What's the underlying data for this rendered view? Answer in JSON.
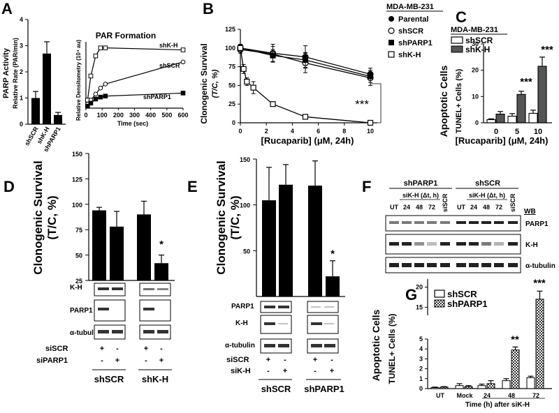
{
  "panels": {
    "A": "A",
    "B": "B",
    "C": "C",
    "D": "D",
    "E": "E",
    "F": "F",
    "G": "G"
  },
  "panelA": {
    "bar": {
      "ylabel1": "PARP Activity",
      "ylabel2": "Relative Rate (PAR/min)",
      "yticks": [
        "0",
        "1",
        "2",
        "3",
        "4"
      ],
      "categories": [
        "shSCR",
        "shK-H",
        "shPARP1"
      ]
    },
    "curve": {
      "title": "PAR Formation",
      "ylabel": "Relative Densitometry (10⁴ au)",
      "xlabel": "Time (sec)",
      "xticks": [
        "0",
        "100",
        "200",
        "300",
        "400",
        "500",
        "600"
      ],
      "labels": [
        "shK-H",
        "shSCR",
        "shPARP1"
      ]
    }
  },
  "panelB": {
    "ylabel1": "Clonogenic Survival",
    "ylabel2": "(T/C, %)",
    "xlabel": "[Rucaparib] (μM, 24h)",
    "yticks": [
      "0",
      "25",
      "50",
      "75",
      "100",
      "125"
    ],
    "xticks": [
      "0",
      "2",
      "4",
      "6",
      "8",
      "10"
    ],
    "legend_title": "MDA-MB-231",
    "legend": [
      "Parental",
      "shSCR",
      "shPARP1",
      "shK-H"
    ],
    "sig": "***"
  },
  "panelC": {
    "ylabel1": "Apoptotic Cells",
    "ylabel2": "TUNEL+ Cells (%)",
    "xlabel": "[Rucaparib] (μM, 24h)",
    "yticks": [
      "0",
      "10",
      "20",
      "30"
    ],
    "xticks": [
      "0",
      "5",
      "10"
    ],
    "legend_title": "MDA-MB-231",
    "legend": [
      "shSCR",
      "shK-H"
    ],
    "sig": [
      "***",
      "***"
    ]
  },
  "panelD": {
    "ylabel1": "Clonogenic Survival",
    "ylabel2": "(T/C, %)",
    "yticks": [
      "25",
      "50",
      "75",
      "100",
      "125",
      "150"
    ],
    "sig": "*",
    "blots": [
      "K-H",
      "PARP1",
      "α-tubulin"
    ],
    "rows": [
      "siSCR",
      "siPARP1"
    ],
    "signs": {
      "siSCR": [
        "+",
        "-",
        "+",
        "-"
      ],
      "siPARP1": [
        "-",
        "+",
        "-",
        "+"
      ]
    },
    "groups": [
      "shSCR",
      "shK-H"
    ]
  },
  "panelE": {
    "ylabel1": "Clonogenic Survival",
    "ylabel2": "(T/C, %)",
    "yticks": [
      "50",
      "100",
      "150"
    ],
    "sig": "*",
    "blots": [
      "PARP1",
      "K-H",
      "α-tubulin"
    ],
    "rows": [
      "siSCR",
      "siK-H"
    ],
    "signs": {
      "siSCR": [
        "+",
        "-",
        "+",
        "-"
      ],
      "siK-H": [
        "-",
        "+",
        "-",
        "+"
      ]
    },
    "groups": [
      "shSCR",
      "shPARP1"
    ]
  },
  "panelF": {
    "groups": [
      "shPARP1",
      "shSCR"
    ],
    "sub": "siK-H (Δt, h)",
    "lanes": [
      "UT",
      "24",
      "48",
      "72",
      "siSCR",
      "UT",
      "24",
      "48",
      "72",
      "siSCR"
    ],
    "wb": "WB",
    "blots": [
      "PARP1",
      "K-H",
      "α-tubulin"
    ]
  },
  "panelG": {
    "ylabel1": "Apoptotic Cells",
    "ylabel2": "TUNEL+ Cells (%)",
    "yticks_low": [
      "0",
      "1",
      "2",
      "3",
      "4",
      "5"
    ],
    "yticks_high": [
      "15",
      "20"
    ],
    "categories": [
      "UT",
      "Mock",
      "24",
      "48",
      "72"
    ],
    "xlabel": "Time (h) after siK-H",
    "legend": [
      "shSCR",
      "shPARP1"
    ],
    "sig": [
      "**",
      "***"
    ]
  },
  "chart_data": [
    {
      "panel": "A-left",
      "type": "bar",
      "categories": [
        "shSCR",
        "shK-H",
        "shPARP1"
      ],
      "values": [
        1.0,
        2.7,
        0.35
      ],
      "errors": [
        0.25,
        0.45,
        0.1
      ],
      "ylim": [
        0,
        4
      ]
    },
    {
      "panel": "A-right",
      "type": "scatter",
      "xlim": [
        0,
        600
      ],
      "series": [
        {
          "name": "shK-H",
          "x": [
            10,
            30,
            60,
            90,
            120,
            600
          ],
          "y": [
            0.4,
            1.6,
            2.6,
            3.0,
            3.0,
            2.9
          ]
        },
        {
          "name": "shSCR",
          "x": [
            10,
            30,
            60,
            90,
            120,
            600
          ],
          "y": [
            0.2,
            0.4,
            0.7,
            1.0,
            1.2,
            2.3
          ]
        },
        {
          "name": "shPARP1",
          "x": [
            10,
            30,
            60,
            90,
            120,
            600
          ],
          "y": [
            0.1,
            0.25,
            0.45,
            0.55,
            0.6,
            0.75
          ]
        }
      ]
    },
    {
      "panel": "B",
      "type": "line",
      "xlabel": "[Rucaparib] (μM, 24h)",
      "ylabel": "Clonogenic Survival (T/C, %)",
      "ylim": [
        0,
        125
      ],
      "xlim": [
        0,
        10
      ],
      "series": [
        {
          "name": "Parental",
          "x": [
            0,
            2.5,
            5,
            10
          ],
          "y": [
            100,
            93,
            88,
            65
          ],
          "err": [
            5,
            12,
            15,
            8
          ]
        },
        {
          "name": "shSCR",
          "x": [
            0,
            2.5,
            5,
            10
          ],
          "y": [
            98,
            92,
            80,
            60
          ],
          "err": [
            5,
            10,
            13,
            10
          ]
        },
        {
          "name": "shPARP1",
          "x": [
            0,
            2.5,
            5,
            10
          ],
          "y": [
            100,
            90,
            84,
            62
          ],
          "err": [
            4,
            8,
            10,
            8
          ]
        },
        {
          "name": "shK-H",
          "x": [
            0,
            0.25,
            0.5,
            1,
            2.5,
            5,
            10
          ],
          "y": [
            100,
            72,
            55,
            47,
            25,
            8,
            0
          ],
          "err": [
            3,
            6,
            5,
            8,
            2,
            1,
            0
          ]
        }
      ]
    },
    {
      "panel": "C",
      "type": "bar",
      "categories": [
        "0",
        "5",
        "10"
      ],
      "ylim": [
        0,
        30
      ],
      "series": [
        {
          "name": "shSCR",
          "values": [
            1.2,
            2.5,
            3.6
          ],
          "err": [
            0.3,
            1,
            1.2
          ]
        },
        {
          "name": "shK-H",
          "values": [
            3.3,
            10.8,
            21.5
          ],
          "err": [
            1,
            1.2,
            3.5
          ]
        }
      ]
    },
    {
      "panel": "D",
      "type": "bar",
      "ylim": [
        25,
        150
      ],
      "values": [
        94,
        78,
        90,
        42
      ],
      "errors": [
        3,
        15,
        13,
        8
      ]
    },
    {
      "panel": "E",
      "type": "bar",
      "ylim": [
        0,
        150
      ],
      "values": [
        105,
        122,
        121,
        22
      ],
      "errors": [
        36,
        22,
        27,
        17
      ]
    },
    {
      "panel": "G",
      "type": "bar",
      "categories": [
        "UT",
        "Mock",
        "24",
        "48",
        "72"
      ],
      "series": [
        {
          "name": "shSCR",
          "values": [
            0.1,
            0.3,
            0.3,
            0.8,
            1.1
          ],
          "err": [
            0.05,
            0.2,
            0.15,
            0.2,
            0.15
          ]
        },
        {
          "name": "shPARP1",
          "values": [
            0.15,
            0.2,
            0.5,
            3.9,
            17
          ]
        },
        {
          "name": "shPARP1_err",
          "values": [
            0.05,
            0.1,
            0.3,
            0.3,
            2
          ]
        }
      ]
    }
  ]
}
